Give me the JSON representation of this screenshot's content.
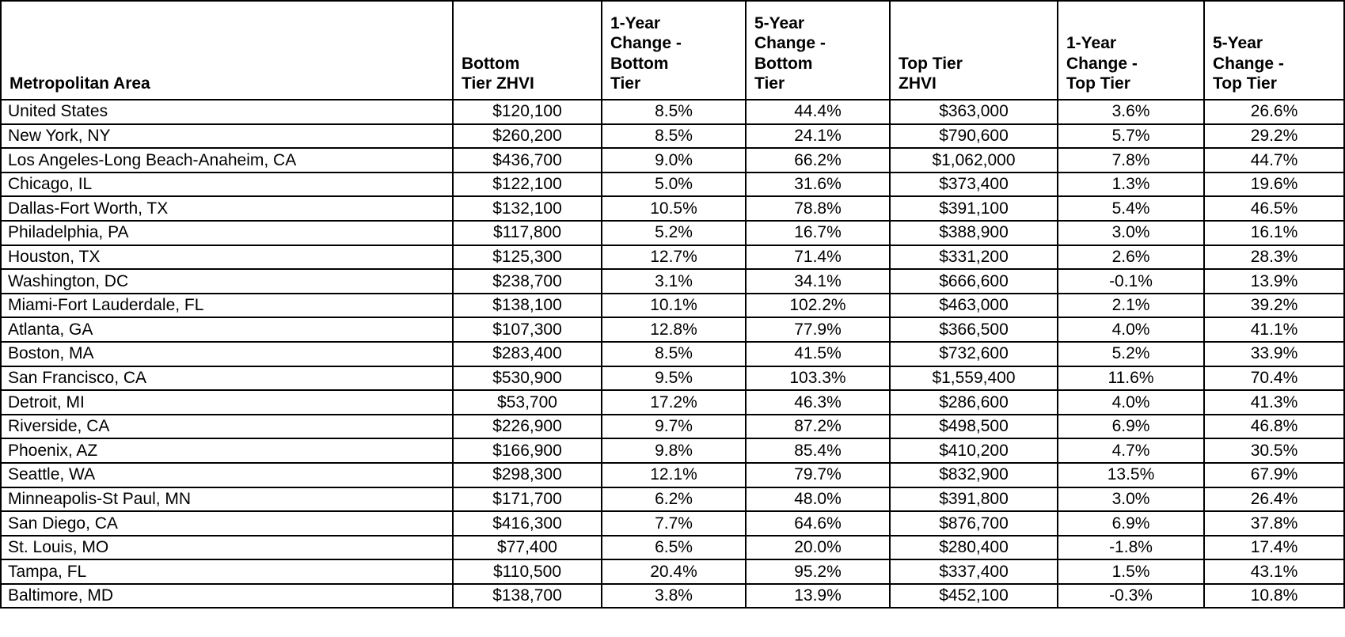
{
  "chart_data": {
    "type": "table",
    "columns": [
      "Metropolitan Area",
      "Bottom Tier ZHVI",
      "1-Year Change - Bottom Tier",
      "5-Year Change - Bottom Tier",
      "Top Tier ZHVI",
      "1-Year Change - Top Tier",
      "5-Year Change - Top Tier"
    ],
    "rows": [
      [
        "United States",
        "$120,100",
        "8.5%",
        "44.4%",
        "$363,000",
        "3.6%",
        "26.6%"
      ],
      [
        "New York, NY",
        "$260,200",
        "8.5%",
        "24.1%",
        "$790,600",
        "5.7%",
        "29.2%"
      ],
      [
        "Los Angeles-Long Beach-Anaheim, CA",
        "$436,700",
        "9.0%",
        "66.2%",
        "$1,062,000",
        "7.8%",
        "44.7%"
      ],
      [
        "Chicago, IL",
        "$122,100",
        "5.0%",
        "31.6%",
        "$373,400",
        "1.3%",
        "19.6%"
      ],
      [
        "Dallas-Fort Worth, TX",
        "$132,100",
        "10.5%",
        "78.8%",
        "$391,100",
        "5.4%",
        "46.5%"
      ],
      [
        "Philadelphia, PA",
        "$117,800",
        "5.2%",
        "16.7%",
        "$388,900",
        "3.0%",
        "16.1%"
      ],
      [
        "Houston, TX",
        "$125,300",
        "12.7%",
        "71.4%",
        "$331,200",
        "2.6%",
        "28.3%"
      ],
      [
        "Washington, DC",
        "$238,700",
        "3.1%",
        "34.1%",
        "$666,600",
        "-0.1%",
        "13.9%"
      ],
      [
        "Miami-Fort Lauderdale, FL",
        "$138,100",
        "10.1%",
        "102.2%",
        "$463,000",
        "2.1%",
        "39.2%"
      ],
      [
        "Atlanta, GA",
        "$107,300",
        "12.8%",
        "77.9%",
        "$366,500",
        "4.0%",
        "41.1%"
      ],
      [
        "Boston, MA",
        "$283,400",
        "8.5%",
        "41.5%",
        "$732,600",
        "5.2%",
        "33.9%"
      ],
      [
        "San Francisco, CA",
        "$530,900",
        "9.5%",
        "103.3%",
        "$1,559,400",
        "11.6%",
        "70.4%"
      ],
      [
        "Detroit, MI",
        "$53,700",
        "17.2%",
        "46.3%",
        "$286,600",
        "4.0%",
        "41.3%"
      ],
      [
        "Riverside, CA",
        "$226,900",
        "9.7%",
        "87.2%",
        "$498,500",
        "6.9%",
        "46.8%"
      ],
      [
        "Phoenix, AZ",
        "$166,900",
        "9.8%",
        "85.4%",
        "$410,200",
        "4.7%",
        "30.5%"
      ],
      [
        "Seattle, WA",
        "$298,300",
        "12.1%",
        "79.7%",
        "$832,900",
        "13.5%",
        "67.9%"
      ],
      [
        "Minneapolis-St Paul, MN",
        "$171,700",
        "6.2%",
        "48.0%",
        "$391,800",
        "3.0%",
        "26.4%"
      ],
      [
        "San Diego, CA",
        "$416,300",
        "7.7%",
        "64.6%",
        "$876,700",
        "6.9%",
        "37.8%"
      ],
      [
        "St. Louis, MO",
        "$77,400",
        "6.5%",
        "20.0%",
        "$280,400",
        "-1.8%",
        "17.4%"
      ],
      [
        "Tampa, FL",
        "$110,500",
        "20.4%",
        "95.2%",
        "$337,400",
        "1.5%",
        "43.1%"
      ],
      [
        "Baltimore, MD",
        "$138,700",
        "3.8%",
        "13.9%",
        "$452,100",
        "-0.3%",
        "10.8%"
      ]
    ]
  }
}
